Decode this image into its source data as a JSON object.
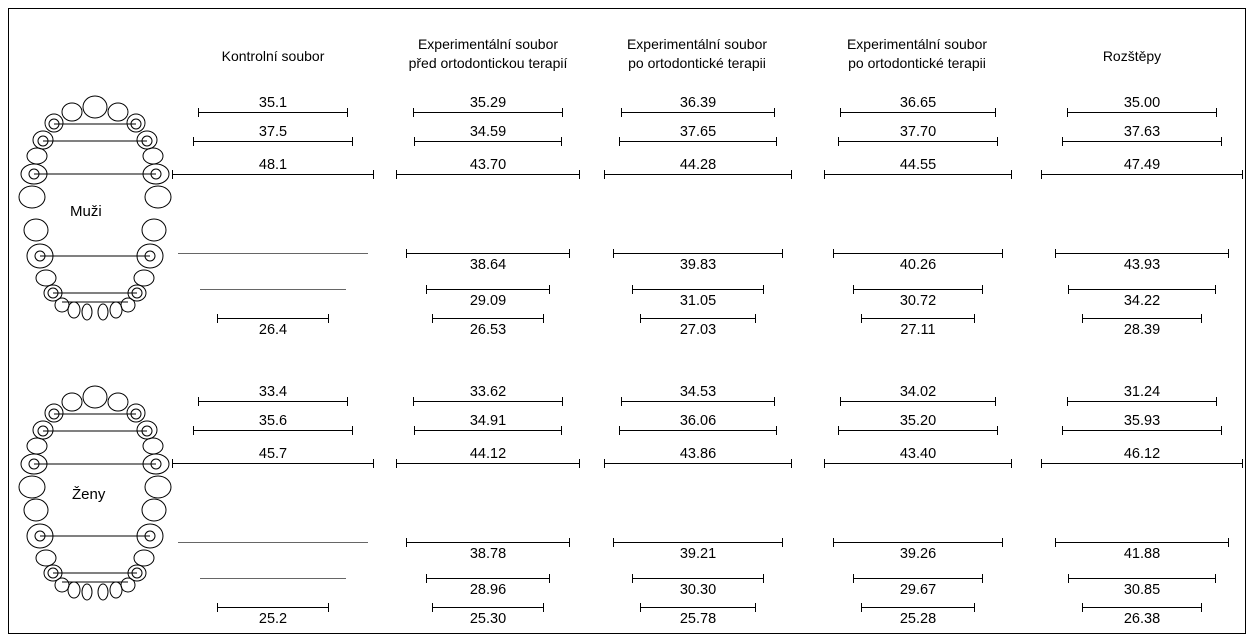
{
  "columns": [
    {
      "lines": [
        "Kontrolní soubor"
      ]
    },
    {
      "lines": [
        "Experimentální soubor",
        "před ortodontickou terapií"
      ]
    },
    {
      "lines": [
        "Experimentální soubor",
        "po ortodontické terapii"
      ]
    },
    {
      "lines": [
        "Experimentální soubor",
        "po ortodontické terapii"
      ]
    },
    {
      "lines": [
        "Rozštěpy"
      ]
    }
  ],
  "groups": [
    {
      "label": "Muži",
      "upper": [
        [
          "35.1",
          "35.29",
          "36.39",
          "36.65",
          "35.00"
        ],
        [
          "37.5",
          "34.59",
          "37.65",
          "37.70",
          "37.63"
        ],
        [
          "48.1",
          "43.70",
          "44.28",
          "44.55",
          "47.49"
        ]
      ],
      "lower": [
        [
          "",
          "38.64",
          "39.83",
          "40.26",
          "43.93"
        ],
        [
          "",
          "29.09",
          "31.05",
          "30.72",
          "34.22"
        ],
        [
          "26.4",
          "26.53",
          "27.03",
          "27.11",
          "28.39"
        ]
      ]
    },
    {
      "label": "Ženy",
      "upper": [
        [
          "33.4",
          "33.62",
          "34.53",
          "34.02",
          "31.24"
        ],
        [
          "35.6",
          "34.91",
          "36.06",
          "35.20",
          "35.93"
        ],
        [
          "45.7",
          "44.12",
          "43.86",
          "43.40",
          "46.12"
        ]
      ],
      "lower": [
        [
          "",
          "38.78",
          "39.21",
          "39.26",
          "41.88"
        ],
        [
          "",
          "28.96",
          "30.30",
          "29.67",
          "30.85"
        ],
        [
          "25.2",
          "25.30",
          "25.78",
          "25.28",
          "26.38"
        ]
      ]
    }
  ]
}
